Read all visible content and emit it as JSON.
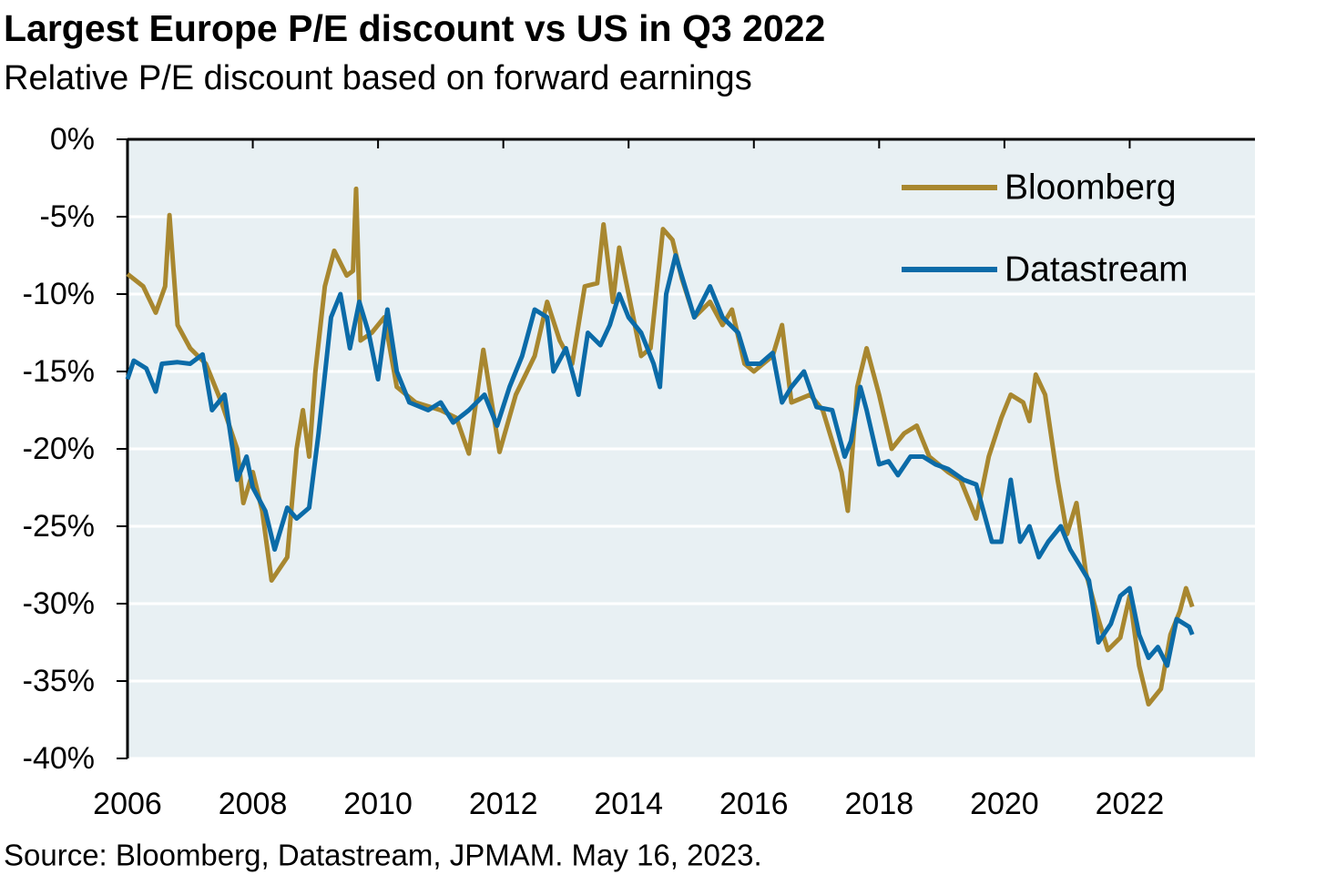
{
  "chart_data": {
    "type": "line",
    "title": "Largest Europe P/E discount vs US in Q3 2022",
    "subtitle": "Relative P/E discount based on forward earnings",
    "source": "Source: Bloomberg, Datastream, JPMAM. May 16, 2023.",
    "xlim": [
      2006,
      2024
    ],
    "xticks": [
      2006,
      2008,
      2010,
      2012,
      2014,
      2016,
      2018,
      2020,
      2022
    ],
    "ylim": [
      -40,
      0
    ],
    "yticks": [
      {
        "value": 0,
        "label": "0%"
      },
      {
        "value": -5,
        "label": "-5%"
      },
      {
        "value": -10,
        "label": "-10%"
      },
      {
        "value": -15,
        "label": "-15%"
      },
      {
        "value": -20,
        "label": "-20%"
      },
      {
        "value": -25,
        "label": "-25%"
      },
      {
        "value": -30,
        "label": "-30%"
      },
      {
        "value": -35,
        "label": "-35%"
      },
      {
        "value": -40,
        "label": "-40%"
      }
    ],
    "grid": true,
    "legend": "top-right",
    "series": [
      {
        "name": "Bloomberg",
        "color": "#A8872F",
        "x": [
          2006.0,
          2006.25,
          2006.45,
          2006.6,
          2006.67,
          2006.8,
          2007.0,
          2007.25,
          2007.5,
          2007.75,
          2007.85,
          2008.0,
          2008.15,
          2008.3,
          2008.55,
          2008.7,
          2008.8,
          2008.9,
          2009.0,
          2009.15,
          2009.3,
          2009.5,
          2009.6,
          2009.65,
          2009.72,
          2009.9,
          2010.1,
          2010.3,
          2010.6,
          2011.0,
          2011.25,
          2011.45,
          2011.68,
          2011.94,
          2012.2,
          2012.5,
          2012.7,
          2012.9,
          2013.1,
          2013.3,
          2013.5,
          2013.6,
          2013.75,
          2013.85,
          2014.0,
          2014.2,
          2014.35,
          2014.55,
          2014.7,
          2014.85,
          2015.05,
          2015.3,
          2015.5,
          2015.65,
          2015.85,
          2016.0,
          2016.3,
          2016.45,
          2016.6,
          2016.9,
          2017.1,
          2017.4,
          2017.5,
          2017.65,
          2017.8,
          2018.0,
          2018.2,
          2018.4,
          2018.6,
          2018.8,
          2019.1,
          2019.3,
          2019.55,
          2019.75,
          2019.95,
          2020.1,
          2020.3,
          2020.4,
          2020.5,
          2020.65,
          2020.85,
          2021.0,
          2021.15,
          2021.3,
          2021.5,
          2021.65,
          2021.85,
          2022.0,
          2022.15,
          2022.3,
          2022.5,
          2022.65,
          2022.8,
          2022.9,
          2023.0
        ],
        "values": [
          -8.7,
          -9.5,
          -11.2,
          -9.5,
          -4.9,
          -12,
          -13.5,
          -14.5,
          -17,
          -20,
          -23.5,
          -21.5,
          -24,
          -28.5,
          -27,
          -20,
          -17.5,
          -20.5,
          -15,
          -9.5,
          -7.2,
          -8.8,
          -8.5,
          -3.2,
          -13,
          -12.5,
          -11.5,
          -16,
          -17,
          -17.5,
          -18,
          -20.3,
          -13.6,
          -20.2,
          -16.5,
          -14,
          -10.5,
          -13,
          -14.5,
          -9.5,
          -9.3,
          -5.5,
          -10.5,
          -7,
          -10,
          -14,
          -13.5,
          -5.8,
          -6.5,
          -9,
          -11.5,
          -10.5,
          -12,
          -11,
          -14.5,
          -15,
          -14,
          -12,
          -17,
          -16.5,
          -17.5,
          -21.5,
          -24,
          -16,
          -13.5,
          -16.5,
          -20,
          -19,
          -18.5,
          -20.5,
          -21.5,
          -22,
          -24.5,
          -20.5,
          -18,
          -16.5,
          -17,
          -18.2,
          -15.2,
          -16.5,
          -22,
          -25.5,
          -23.5,
          -28,
          -31,
          -33,
          -32.2,
          -29.5,
          -34,
          -36.5,
          -35.5,
          -32,
          -30.5,
          -29,
          -30.2
        ]
      },
      {
        "name": "Datastream",
        "color": "#0B6BA8",
        "x": [
          2006.0,
          2006.1,
          2006.3,
          2006.45,
          2006.55,
          2006.8,
          2007.0,
          2007.2,
          2007.35,
          2007.55,
          2007.75,
          2007.9,
          2008.0,
          2008.2,
          2008.35,
          2008.55,
          2008.7,
          2008.9,
          2009.05,
          2009.25,
          2009.4,
          2009.55,
          2009.7,
          2009.85,
          2010.0,
          2010.15,
          2010.3,
          2010.5,
          2010.8,
          2011.0,
          2011.2,
          2011.45,
          2011.7,
          2011.9,
          2012.1,
          2012.3,
          2012.5,
          2012.7,
          2012.8,
          2013.0,
          2013.2,
          2013.35,
          2013.55,
          2013.7,
          2013.85,
          2014.0,
          2014.2,
          2014.4,
          2014.5,
          2014.6,
          2014.75,
          2014.9,
          2015.05,
          2015.3,
          2015.5,
          2015.75,
          2015.9,
          2016.1,
          2016.3,
          2016.45,
          2016.6,
          2016.8,
          2017.0,
          2017.25,
          2017.45,
          2017.55,
          2017.7,
          2017.8,
          2018.0,
          2018.15,
          2018.3,
          2018.5,
          2018.7,
          2018.9,
          2019.1,
          2019.35,
          2019.55,
          2019.8,
          2019.95,
          2020.1,
          2020.25,
          2020.4,
          2020.55,
          2020.7,
          2020.9,
          2021.05,
          2021.2,
          2021.35,
          2021.5,
          2021.7,
          2021.85,
          2022.0,
          2022.15,
          2022.3,
          2022.45,
          2022.6,
          2022.75,
          2022.95,
          2023.0
        ],
        "values": [
          -15.5,
          -14.3,
          -14.8,
          -16.3,
          -14.5,
          -14.4,
          -14.5,
          -13.9,
          -17.5,
          -16.5,
          -22,
          -20.5,
          -22.5,
          -24,
          -26.5,
          -23.8,
          -24.5,
          -23.8,
          -19,
          -11.5,
          -10,
          -13.5,
          -10.5,
          -12.5,
          -15.5,
          -11,
          -15,
          -17,
          -17.5,
          -17,
          -18.3,
          -17.5,
          -16.5,
          -18.5,
          -16,
          -14,
          -11,
          -11.5,
          -15,
          -13.5,
          -16.5,
          -12.5,
          -13.3,
          -12,
          -10,
          -11.5,
          -12.5,
          -14.5,
          -16,
          -10,
          -7.5,
          -9.5,
          -11.5,
          -9.5,
          -11.5,
          -12.5,
          -14.5,
          -14.5,
          -13.8,
          -17,
          -16,
          -15,
          -17.3,
          -17.5,
          -20.5,
          -19.5,
          -16,
          -17.5,
          -21,
          -20.8,
          -21.7,
          -20.5,
          -20.5,
          -21,
          -21.3,
          -22,
          -22.3,
          -26,
          -26,
          -22,
          -26,
          -25,
          -27,
          -26,
          -25,
          -26.5,
          -27.5,
          -28.5,
          -32.5,
          -31.3,
          -29.5,
          -29,
          -32,
          -33.5,
          -32.8,
          -34,
          -31,
          -31.5,
          -32
        ]
      }
    ]
  }
}
